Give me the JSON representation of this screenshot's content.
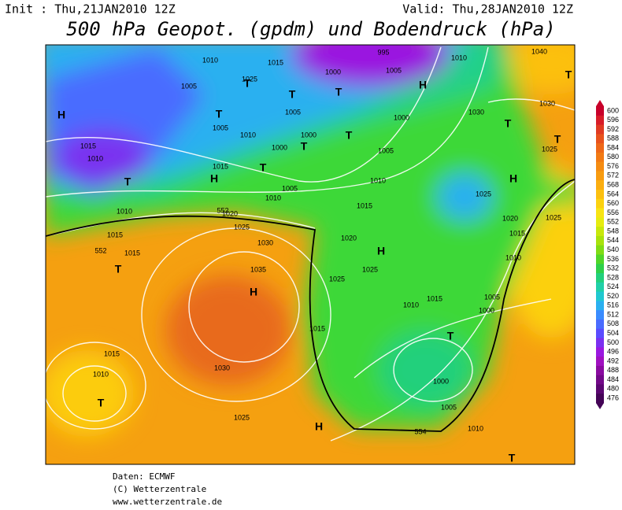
{
  "header": {
    "init": "Init : Thu,21JAN2010 12Z",
    "valid": "Valid: Thu,28JAN2010 12Z",
    "title": "500 hPa Geopot. (gpdm) und Bodendruck (hPa)"
  },
  "legend": {
    "labels": [
      "600",
      "596",
      "592",
      "588",
      "584",
      "580",
      "576",
      "572",
      "568",
      "564",
      "560",
      "556",
      "552",
      "548",
      "544",
      "540",
      "536",
      "532",
      "528",
      "524",
      "520",
      "516",
      "512",
      "508",
      "504",
      "500",
      "496",
      "492",
      "488",
      "484",
      "480",
      "476"
    ],
    "colors": [
      "#c8002a",
      "#d81c28",
      "#e03a22",
      "#e8521c",
      "#ee6818",
      "#f27a14",
      "#f58c12",
      "#f89c10",
      "#fbae10",
      "#fcc010",
      "#fcd210",
      "#f8e414",
      "#e6ec10",
      "#c8e80c",
      "#a8e20c",
      "#80dc14",
      "#50d628",
      "#2ed04a",
      "#22d07c",
      "#20d0a8",
      "#20c8d0",
      "#2ab0f0",
      "#3a8cff",
      "#4a6cff",
      "#5a4cff",
      "#7a30f0",
      "#9a18e0",
      "#a010c0",
      "#8a0aa0",
      "#720888",
      "#5a0670",
      "#440456"
    ]
  },
  "map": {
    "isobars": [
      "1010",
      "1015",
      "995",
      "1010",
      "1040",
      "1005",
      "1025",
      "1000",
      "1005",
      "1005",
      "1005",
      "1010",
      "1000",
      "1000",
      "1000",
      "1005",
      "1030",
      "1030",
      "1025",
      "1015",
      "1010",
      "1015",
      "1005",
      "1010",
      "1010",
      "1025",
      "1010",
      "1020",
      "1015",
      "1020",
      "1025",
      "1015",
      "1025",
      "1020",
      "1015",
      "1015",
      "1030",
      "1025",
      "1010",
      "1035",
      "1025",
      "1015",
      "1005",
      "1010",
      "1000",
      "1015",
      "1015",
      "1010",
      "1030",
      "1000",
      "1005",
      "1025",
      "1010"
    ],
    "contours": [
      "552",
      "552",
      "554"
    ],
    "centers": [
      "H",
      "T",
      "T",
      "T",
      "H",
      "T",
      "T",
      "T",
      "T",
      "T",
      "H",
      "T",
      "T",
      "T",
      "H",
      "H",
      "T",
      "H",
      "T",
      "T",
      "H",
      "T"
    ]
  },
  "footer": [
    "Daten: ECMWF",
    "(C) Wetterzentrale",
    "www.wetterzentrale.de"
  ]
}
